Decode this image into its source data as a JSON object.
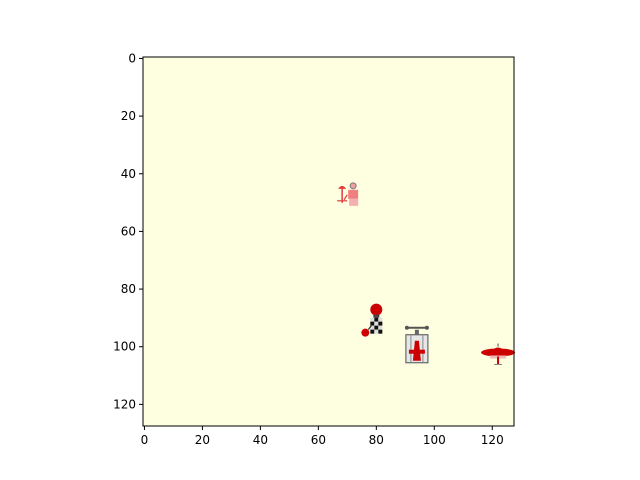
{
  "plot": {
    "background": "#fefee0",
    "xlim": [
      -0.5,
      127.5
    ],
    "ylim": [
      127.5,
      -0.5
    ],
    "x_ticks": [
      0,
      20,
      40,
      60,
      80,
      100,
      120
    ],
    "y_ticks": [
      0,
      20,
      40,
      60,
      80,
      100,
      120
    ],
    "x_tick_labels": [
      "0",
      "20",
      "40",
      "60",
      "80",
      "100",
      "120"
    ],
    "y_tick_labels": [
      "0",
      "20",
      "40",
      "60",
      "80",
      "100",
      "120"
    ]
  },
  "sprites": [
    {
      "name": "person-with-umbrella-sprite",
      "icon": "person-umbrella-icon",
      "x": 72,
      "y": 48,
      "color": "#e23b3b"
    },
    {
      "name": "checkered-figure-sprite",
      "icon": "checkered-figure-icon",
      "x": 80,
      "y": 92,
      "color": "#cc0000"
    },
    {
      "name": "tower-sprite",
      "icon": "tower-icon",
      "x": 94,
      "y": 100,
      "color": "#cc0000"
    },
    {
      "name": "saucer-sprite",
      "icon": "saucer-icon",
      "x": 122,
      "y": 102,
      "color": "#cc0000"
    }
  ]
}
